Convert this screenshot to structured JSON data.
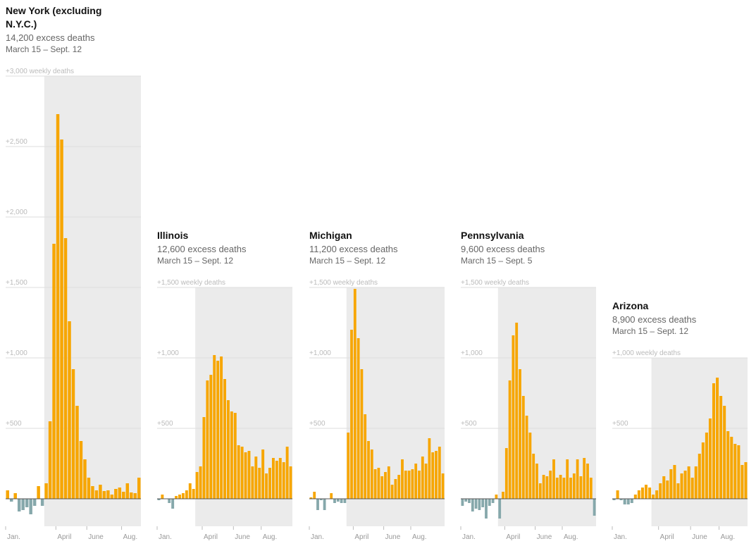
{
  "colors": {
    "positive": "#f7a600",
    "negative": "#86a8ab",
    "shade": "#ebebeb",
    "grid": "#dddddd",
    "baseline": "#555555"
  },
  "chart_data": [
    {
      "type": "bar",
      "title": "New York (excluding N.Y.C.)",
      "subtitle": "14,200 excess deaths",
      "dates": "March 15 – Sept. 12",
      "top_label": "+3,000 weekly deaths",
      "ylim": [
        -200,
        3000
      ],
      "gridlines": [
        {
          "value": 500,
          "label": "+500"
        },
        {
          "value": 1000,
          "label": "+1,000"
        },
        {
          "value": 1500,
          "label": "+1,500"
        },
        {
          "value": 2000,
          "label": "+2,000"
        },
        {
          "value": 2500,
          "label": "+2,500"
        },
        {
          "value": 3000,
          "label": "+3,000 weekly deaths"
        }
      ],
      "xticks": [
        {
          "week": 0,
          "label": "Jan."
        },
        {
          "week": 13,
          "label": "April"
        },
        {
          "week": 21,
          "label": "June"
        },
        {
          "week": 30,
          "label": "Aug."
        }
      ],
      "shade_start_week": 10,
      "values": [
        60,
        -20,
        40,
        -90,
        -80,
        -60,
        -110,
        -50,
        90,
        -50,
        110,
        550,
        1810,
        2730,
        2550,
        1850,
        1260,
        920,
        660,
        410,
        280,
        150,
        90,
        60,
        100,
        55,
        60,
        30,
        70,
        80,
        50,
        110,
        45,
        40,
        150
      ]
    },
    {
      "type": "bar",
      "title": "Illinois",
      "subtitle": "12,600 excess deaths",
      "dates": "March 15 – Sept. 12",
      "top_label": "+1,500 weekly deaths",
      "ylim": [
        -200,
        1500
      ],
      "gridlines": [
        {
          "value": 500,
          "label": "+500"
        },
        {
          "value": 1000,
          "label": "+1,000"
        },
        {
          "value": 1500,
          "label": "+1,500 weekly deaths"
        }
      ],
      "xticks": [
        {
          "week": 0,
          "label": "Jan."
        },
        {
          "week": 13,
          "label": "April"
        },
        {
          "week": 22,
          "label": "June"
        },
        {
          "week": 30,
          "label": "Aug."
        }
      ],
      "shade_start_week": 11,
      "values": [
        -10,
        30,
        0,
        -30,
        -70,
        20,
        30,
        40,
        60,
        110,
        70,
        190,
        230,
        580,
        840,
        880,
        1020,
        980,
        1010,
        850,
        700,
        620,
        610,
        380,
        370,
        330,
        340,
        230,
        300,
        220,
        350,
        180,
        220,
        290,
        270,
        290,
        260,
        370,
        230
      ]
    },
    {
      "type": "bar",
      "title": "Michigan",
      "subtitle": "11,200 excess deaths",
      "dates": "March 15 – Sept. 12",
      "top_label": "+1,500 weekly deaths",
      "ylim": [
        -200,
        1500
      ],
      "gridlines": [
        {
          "value": 500,
          "label": "+500"
        },
        {
          "value": 1000,
          "label": "+1,000"
        },
        {
          "value": 1500,
          "label": "+1,500 weekly deaths"
        }
      ],
      "xticks": [
        {
          "week": 0,
          "label": "Jan."
        },
        {
          "week": 13,
          "label": "April"
        },
        {
          "week": 22,
          "label": "June"
        },
        {
          "week": 30,
          "label": "Aug."
        }
      ],
      "shade_start_week": 11,
      "values": [
        10,
        50,
        -80,
        -10,
        -80,
        0,
        40,
        -30,
        -20,
        -30,
        -30,
        470,
        1200,
        1490,
        1140,
        920,
        600,
        410,
        350,
        210,
        220,
        160,
        190,
        230,
        100,
        140,
        170,
        280,
        200,
        200,
        210,
        250,
        200,
        300,
        250,
        430,
        330,
        340,
        370,
        180
      ]
    },
    {
      "type": "bar",
      "title": "Pennsylvania",
      "subtitle": "9,600 excess deaths",
      "dates": "March 15 – Sept. 5",
      "top_label": "+1,500 weekly deaths",
      "ylim": [
        -200,
        1500
      ],
      "gridlines": [
        {
          "value": 500,
          "label": "+500"
        },
        {
          "value": 1000,
          "label": "+1,000"
        },
        {
          "value": 1500,
          "label": "+1,500 weekly deaths"
        }
      ],
      "xticks": [
        {
          "week": 0,
          "label": "Jan."
        },
        {
          "week": 13,
          "label": "April"
        },
        {
          "week": 22,
          "label": "June"
        },
        {
          "week": 30,
          "label": "Aug."
        }
      ],
      "shade_start_week": 11,
      "values": [
        -50,
        -20,
        -30,
        -90,
        -70,
        -80,
        -60,
        -140,
        -50,
        -30,
        30,
        -140,
        50,
        360,
        840,
        1160,
        1250,
        920,
        730,
        590,
        470,
        320,
        250,
        110,
        170,
        160,
        200,
        280,
        150,
        170,
        150,
        280,
        150,
        180,
        280,
        160,
        290,
        250,
        150,
        -120
      ]
    },
    {
      "type": "bar",
      "title": "Arizona",
      "subtitle": "8,900 excess deaths",
      "dates": "March 15 – Sept. 12",
      "top_label": "+1,000 weekly deaths",
      "ylim": [
        -200,
        1000
      ],
      "gridlines": [
        {
          "value": 500,
          "label": "+500"
        },
        {
          "value": 1000,
          "label": "+1,000 weekly deaths"
        }
      ],
      "xticks": [
        {
          "week": 0,
          "label": "Jan."
        },
        {
          "week": 13,
          "label": "April"
        },
        {
          "week": 22,
          "label": "June"
        },
        {
          "week": 30,
          "label": "Aug."
        }
      ],
      "shade_start_week": 11,
      "values": [
        -10,
        60,
        -10,
        -40,
        -40,
        -30,
        30,
        60,
        80,
        100,
        80,
        30,
        60,
        110,
        160,
        130,
        210,
        240,
        110,
        180,
        200,
        230,
        150,
        230,
        320,
        400,
        470,
        570,
        820,
        860,
        730,
        660,
        480,
        440,
        390,
        380,
        240,
        260
      ]
    }
  ]
}
